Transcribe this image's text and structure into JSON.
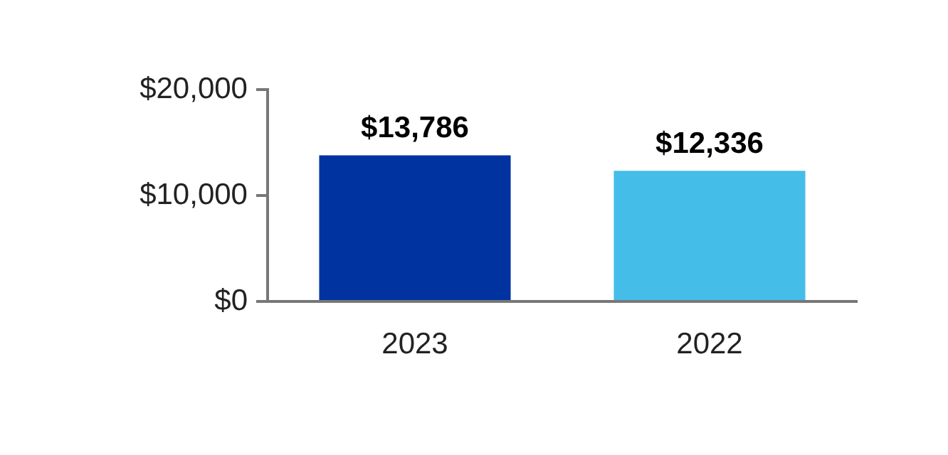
{
  "chart_data": {
    "type": "bar",
    "categories": [
      "2023",
      "2022"
    ],
    "values": [
      13786,
      12336
    ],
    "colors": [
      "#0033a0",
      "#44bde8"
    ],
    "value_labels": [
      "$13,786",
      "$12,336"
    ],
    "ylim": [
      0,
      20000
    ],
    "yticks": [
      {
        "value": 0,
        "label": "$0"
      },
      {
        "value": 10000,
        "label": "$10,000"
      },
      {
        "value": 20000,
        "label": "$20,000"
      }
    ],
    "grid": false,
    "legend": false
  }
}
